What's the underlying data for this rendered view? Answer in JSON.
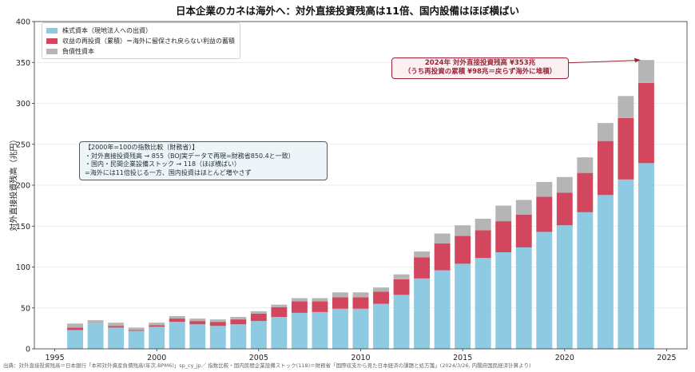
{
  "title": "日本企業のカネは海外へ：対外直接投資残高は11倍、国内設備はほぼ横ばい",
  "source": "出典：対外直接投資残高＝日本銀行「本邦対外資産負債残高(年次,BPM6)」sp_cy_jp／ 指数比較・国内民間企業設備ストック(118)＝財務省「国際収支から見た日本経済の課題と処方箋」(2024/3/26, 内閣府国民経済計算より)",
  "annotation": {
    "line1": "2024年 対外直接投資残高 ¥353兆",
    "line2": "（うち再投資の累積 ¥98兆＝戻らず海外に堆積）"
  },
  "note": {
    "lines": [
      "【2000年=100の指数比較（財務省）】",
      "・対外直接投資残高 → 855（BOJ実データで再現=財務省850.4と一致）",
      "・国内・民間企業設備ストック → 118（ほぼ横ばい）",
      "=海外には11倍投じる一方、国内投資はほとんど増やさず"
    ]
  },
  "colors": {
    "equity": "#8ecae2",
    "reinvest": "#d2475e",
    "debt": "#b5b5b5",
    "annotation": "#9b2335",
    "grid": "#e8e8e8"
  },
  "chart_data": {
    "type": "bar",
    "stacked": true,
    "title": "日本企業のカネは海外へ：対外直接投資残高は11倍、国内設備はほぼ横ばい",
    "xlabel": "",
    "ylabel": "対外直接投資残高（兆円）",
    "xlim": [
      1994,
      2026
    ],
    "ylim": [
      0,
      400
    ],
    "xticks": [
      1995,
      2000,
      2005,
      2010,
      2015,
      2020,
      2025
    ],
    "yticks": [
      0,
      50,
      100,
      150,
      200,
      250,
      300,
      350,
      400
    ],
    "grid": "horizontal",
    "legend_position": "top-left",
    "x": [
      1996,
      1997,
      1998,
      1999,
      2000,
      2001,
      2002,
      2003,
      2004,
      2005,
      2006,
      2007,
      2008,
      2009,
      2010,
      2011,
      2012,
      2013,
      2014,
      2015,
      2016,
      2017,
      2018,
      2019,
      2020,
      2021,
      2022,
      2023,
      2024
    ],
    "series": [
      {
        "name": "株式資本（現地法人への出資）",
        "values": [
          23,
          31,
          26,
          22,
          27,
          33,
          30,
          28,
          30,
          34,
          39,
          44,
          45,
          49,
          49,
          55,
          66,
          86,
          96,
          104,
          111,
          118,
          124,
          143,
          151,
          167,
          188,
          207,
          227
        ]
      },
      {
        "name": "収益の再投資（累積）＝海外に留保され戻らない利益の蓄積",
        "values": [
          3,
          0,
          2,
          1,
          2,
          4,
          4,
          5,
          6,
          9,
          12,
          14,
          13,
          14,
          14,
          15,
          19,
          26,
          33,
          34,
          34,
          38,
          40,
          43,
          40,
          48,
          66,
          75,
          98
        ]
      },
      {
        "name": "負債性資本",
        "values": [
          5,
          4,
          4,
          3,
          3,
          3,
          3,
          3,
          3,
          3,
          3,
          4,
          4,
          6,
          6,
          5,
          6,
          7,
          12,
          13,
          14,
          19,
          18,
          18,
          19,
          19,
          22,
          27,
          28
        ]
      }
    ]
  }
}
